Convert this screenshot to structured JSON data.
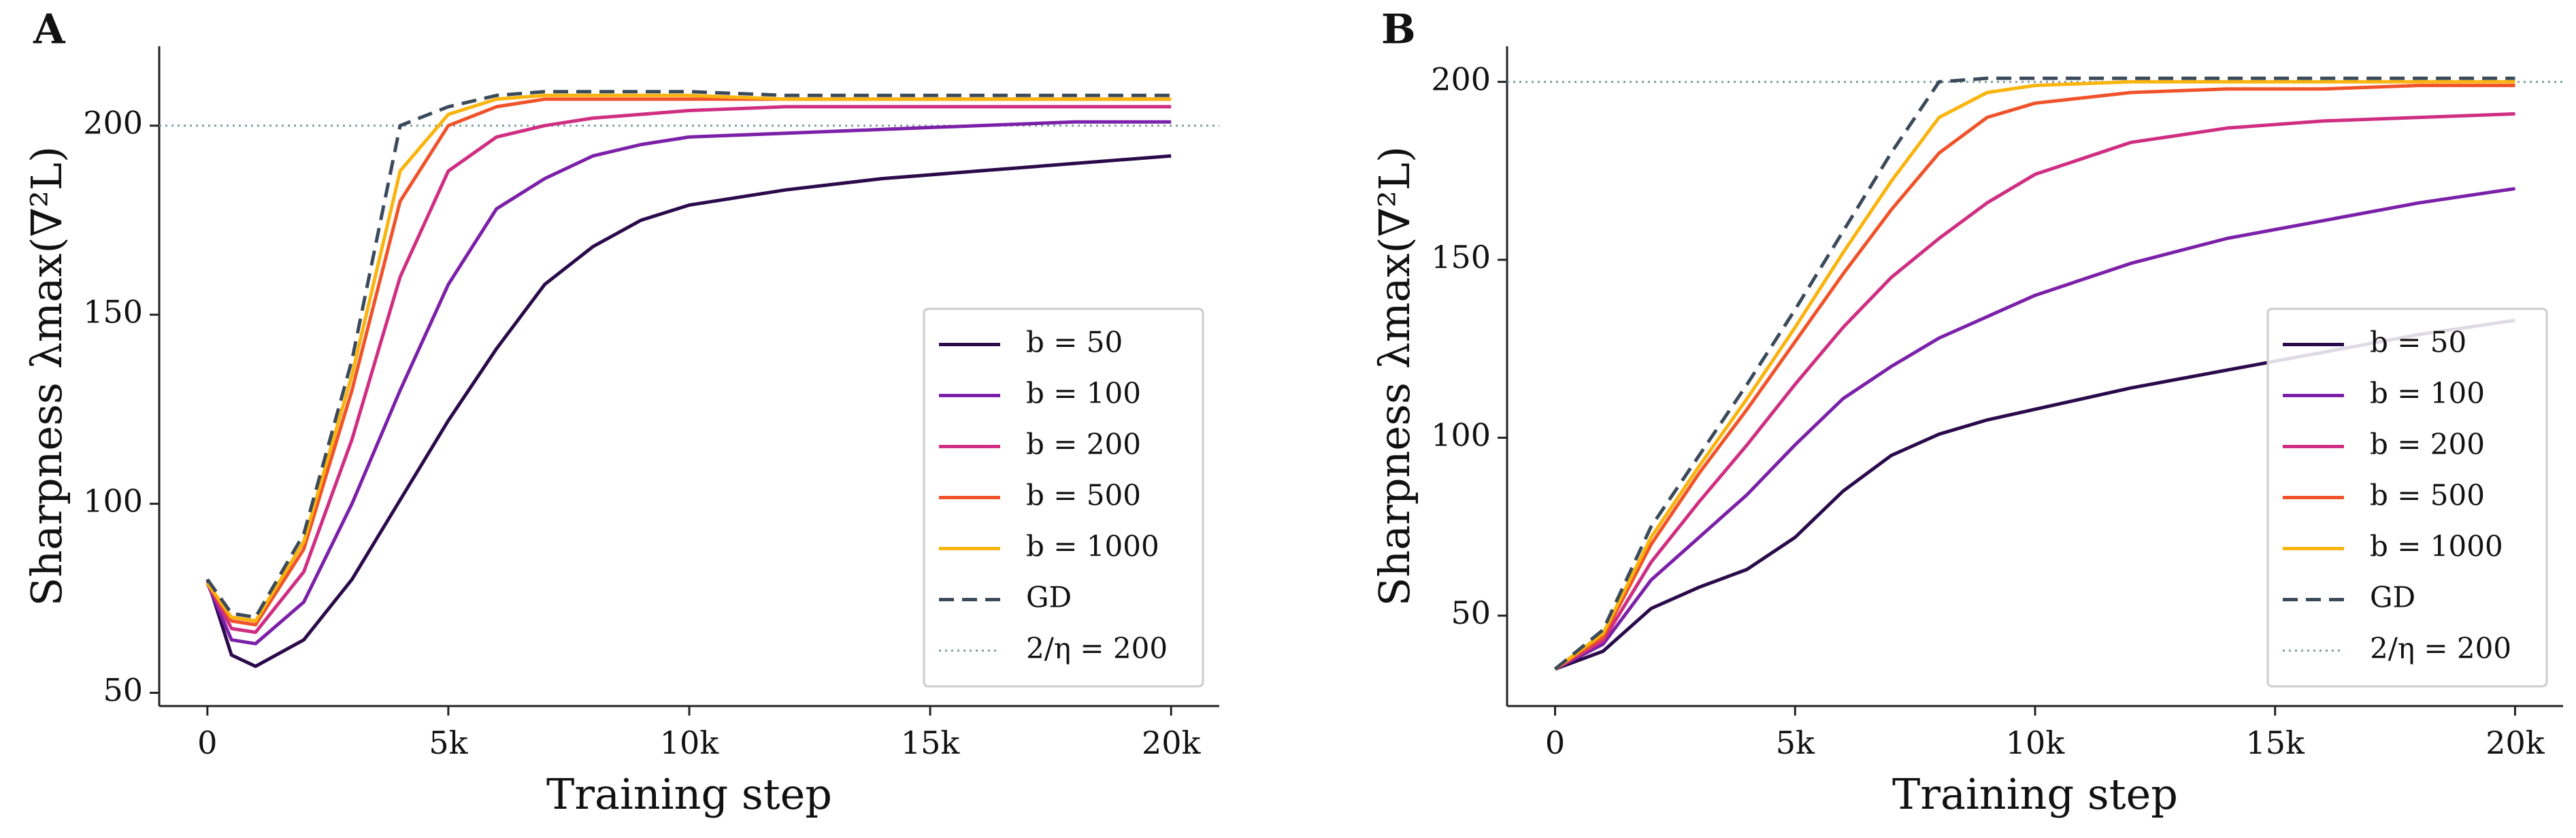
{
  "chart_data": [
    {
      "type": "line",
      "panel_label": "A",
      "x_label": "Training step",
      "y_label": "Sharpness λmax(∇²L)",
      "x": [
        0,
        500,
        1000,
        2000,
        3000,
        4000,
        5000,
        6000,
        7000,
        8000,
        9000,
        10000,
        12000,
        14000,
        16000,
        18000,
        20000
      ],
      "series": [
        {
          "name": "b = 50",
          "color": "#2a0a4a",
          "dash": "solid",
          "values": [
            80,
            60,
            57,
            64,
            80,
            101,
            122,
            141,
            158,
            168,
            175,
            179,
            183,
            186,
            188,
            190,
            192
          ]
        },
        {
          "name": "b = 100",
          "color": "#7b20a8",
          "dash": "solid",
          "values": [
            79,
            64,
            63,
            74,
            100,
            130,
            158,
            178,
            186,
            192,
            195,
            197,
            198,
            199,
            200,
            201,
            201
          ]
        },
        {
          "name": "b = 200",
          "color": "#cf2e82",
          "dash": "solid",
          "values": [
            79,
            67,
            66,
            82,
            117,
            160,
            188,
            197,
            200,
            202,
            203,
            204,
            205,
            205,
            205,
            205,
            205
          ]
        },
        {
          "name": "b = 500",
          "color": "#f0522a",
          "dash": "solid",
          "values": [
            79,
            69,
            68,
            88,
            130,
            180,
            200,
            205,
            207,
            207,
            207,
            207,
            207,
            207,
            207,
            207,
            207
          ]
        },
        {
          "name": "b = 1000",
          "color": "#f9b40e",
          "dash": "solid",
          "values": [
            79,
            70,
            69,
            90,
            134,
            188,
            203,
            207,
            208,
            208,
            208,
            208,
            207,
            207,
            207,
            207,
            207
          ]
        },
        {
          "name": "GD",
          "color": "#3b4a5a",
          "dash": "dashed",
          "values": [
            80,
            71,
            70,
            92,
            138,
            200,
            205,
            208,
            209,
            209,
            209,
            209,
            208,
            208,
            208,
            208,
            208
          ]
        }
      ],
      "reference_line": {
        "name": "2/η = 200",
        "value": 200,
        "color": "#7f9f9f"
      },
      "xlim": [
        -1000,
        21000
      ],
      "ylim": [
        46.5,
        221
      ],
      "xticks": [
        0,
        {
          "value": 5000,
          "label": "5k"
        },
        {
          "value": 10000,
          "label": "10k"
        },
        {
          "value": 15000,
          "label": "15k"
        },
        {
          "value": 20000,
          "label": "20k"
        }
      ],
      "yticks": [
        50,
        100,
        150,
        200
      ],
      "legend": "lower right"
    },
    {
      "type": "line",
      "panel_label": "B",
      "x_label": "Training step",
      "y_label": "Sharpness λmax(∇²L)",
      "x": [
        0,
        1000,
        2000,
        3000,
        4000,
        5000,
        6000,
        7000,
        8000,
        9000,
        10000,
        12000,
        14000,
        16000,
        18000,
        20000
      ],
      "series": [
        {
          "name": "b = 50",
          "color": "#2a0a4a",
          "dash": "solid",
          "values": [
            35,
            40,
            52,
            58,
            63,
            72,
            85,
            95,
            101,
            105,
            108,
            114,
            119,
            124,
            129,
            133
          ]
        },
        {
          "name": "b = 100",
          "color": "#7b20a8",
          "dash": "solid",
          "values": [
            35,
            42,
            60,
            72,
            84,
            98,
            111,
            120,
            128,
            134,
            140,
            149,
            156,
            161,
            166,
            170
          ]
        },
        {
          "name": "b = 200",
          "color": "#cf2e82",
          "dash": "solid",
          "values": [
            35,
            43,
            65,
            82,
            98,
            115,
            131,
            145,
            156,
            166,
            174,
            183,
            187,
            189,
            190,
            191
          ]
        },
        {
          "name": "b = 500",
          "color": "#f0522a",
          "dash": "solid",
          "values": [
            35,
            44,
            70,
            90,
            108,
            127,
            146,
            164,
            180,
            190,
            194,
            197,
            198,
            198,
            199,
            199
          ]
        },
        {
          "name": "b = 1000",
          "color": "#f9b40e",
          "dash": "solid",
          "values": [
            35,
            45,
            72,
            92,
            111,
            131,
            152,
            172,
            190,
            197,
            199,
            200,
            200,
            200,
            200,
            200
          ]
        },
        {
          "name": "GD",
          "color": "#3b4a5a",
          "dash": "dashed",
          "values": [
            35,
            46,
            75,
            95,
            115,
            136,
            158,
            180,
            200,
            201,
            201,
            201,
            201,
            201,
            201,
            201
          ]
        }
      ],
      "reference_line": {
        "name": "2/η = 200",
        "value": 200,
        "color": "#7f9f9f"
      },
      "xlim": [
        -1000,
        21000
      ],
      "ylim": [
        24.6,
        210
      ],
      "xticks": [
        0,
        {
          "value": 5000,
          "label": "5k"
        },
        {
          "value": 10000,
          "label": "10k"
        },
        {
          "value": 15000,
          "label": "15k"
        },
        {
          "value": 20000,
          "label": "20k"
        }
      ],
      "yticks": [
        50,
        100,
        150,
        200
      ],
      "legend": "lower right"
    }
  ]
}
